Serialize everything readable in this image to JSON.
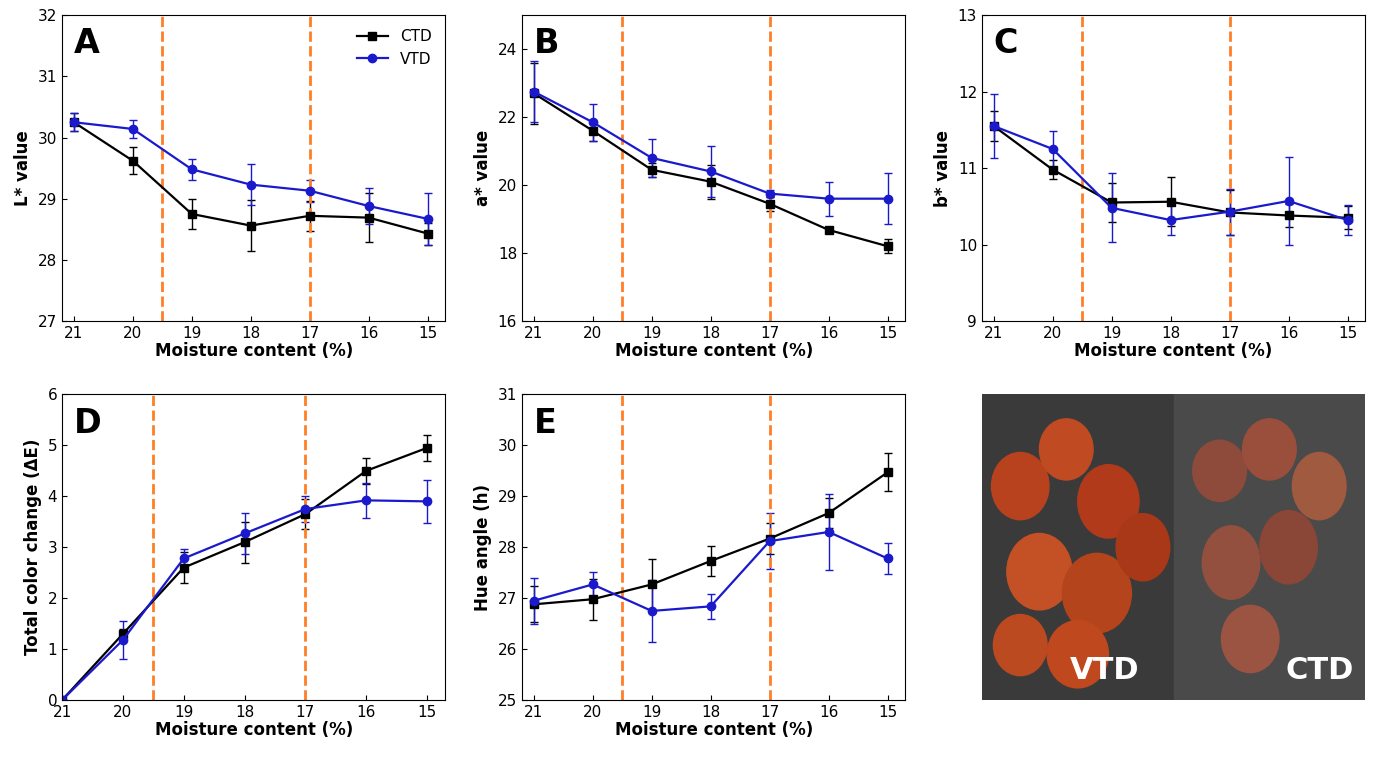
{
  "chart_data": [
    {
      "type": "line",
      "panel": "A",
      "xlabel": "Moisture content (%)",
      "ylabel": "L* value",
      "x": [
        21,
        20,
        19,
        18,
        17,
        16,
        15
      ],
      "xlim": [
        21.2,
        14.7
      ],
      "xticks": [
        21,
        20,
        19,
        18,
        17,
        16,
        15
      ],
      "ylim": [
        27,
        32
      ],
      "yticks": [
        27,
        28,
        29,
        30,
        31,
        32
      ],
      "vlines": [
        19.5,
        17
      ],
      "legend": "upper right",
      "series": [
        {
          "name": "CTD",
          "color": "#000000",
          "marker": "square",
          "values": [
            30.25,
            29.62,
            28.75,
            28.56,
            28.72,
            28.69,
            28.43
          ],
          "errors": [
            0.15,
            0.22,
            0.25,
            0.42,
            0.25,
            0.4,
            0.18
          ]
        },
        {
          "name": "VTD",
          "color": "#1a1acc",
          "marker": "circle",
          "values": [
            30.25,
            30.14,
            29.48,
            29.23,
            29.13,
            28.88,
            28.67
          ],
          "errors": [
            0.15,
            0.15,
            0.17,
            0.33,
            0.18,
            0.3,
            0.42
          ]
        }
      ]
    },
    {
      "type": "line",
      "panel": "B",
      "xlabel": "Moisture content (%)",
      "ylabel": "a* value",
      "x": [
        21,
        20,
        19,
        18,
        17,
        16,
        15
      ],
      "xlim": [
        21.2,
        14.7
      ],
      "xticks": [
        21,
        20,
        19,
        18,
        17,
        16,
        15
      ],
      "ylim": [
        16,
        25
      ],
      "yticks": [
        16,
        18,
        20,
        22,
        24
      ],
      "vlines": [
        19.5,
        17
      ],
      "series": [
        {
          "name": "CTD",
          "color": "#000000",
          "marker": "square",
          "values": [
            22.7,
            21.6,
            20.45,
            20.1,
            19.45,
            18.68,
            18.2
          ],
          "errors": [
            0.9,
            0.3,
            0.2,
            0.5,
            0.2,
            0.1,
            0.2
          ]
        },
        {
          "name": "VTD",
          "color": "#1a1acc",
          "marker": "circle",
          "values": [
            22.75,
            21.85,
            20.8,
            20.4,
            19.75,
            19.6,
            19.6
          ],
          "errors": [
            0.9,
            0.55,
            0.55,
            0.75,
            0.1,
            0.5,
            0.75
          ]
        }
      ]
    },
    {
      "type": "line",
      "panel": "C",
      "xlabel": "Moisture content (%)",
      "ylabel": "b* value",
      "x": [
        21,
        20,
        19,
        18,
        17,
        16,
        15
      ],
      "xlim": [
        21.2,
        14.7
      ],
      "xticks": [
        21,
        20,
        19,
        18,
        17,
        16,
        15
      ],
      "ylim": [
        9,
        13
      ],
      "yticks": [
        9,
        10,
        11,
        12,
        13
      ],
      "vlines": [
        19.5,
        17
      ],
      "series": [
        {
          "name": "CTD",
          "color": "#000000",
          "marker": "square",
          "values": [
            11.55,
            10.98,
            10.55,
            10.56,
            10.42,
            10.38,
            10.35
          ],
          "errors": [
            0.2,
            0.12,
            0.25,
            0.32,
            0.3,
            0.15,
            0.15
          ]
        },
        {
          "name": "VTD",
          "color": "#1a1acc",
          "marker": "circle",
          "values": [
            11.55,
            11.25,
            10.48,
            10.32,
            10.43,
            10.57,
            10.32
          ],
          "errors": [
            0.42,
            0.23,
            0.45,
            0.2,
            0.3,
            0.58,
            0.2
          ]
        }
      ]
    },
    {
      "type": "line",
      "panel": "D",
      "xlabel": "Moisture content (%)",
      "ylabel": "Total color change (ΔE)",
      "x": [
        21,
        20,
        19,
        18,
        17,
        16,
        15
      ],
      "xlim": [
        21,
        14.7
      ],
      "xticks": [
        21,
        20,
        19,
        18,
        17,
        16,
        15
      ],
      "ylim": [
        0,
        6
      ],
      "yticks": [
        0,
        1,
        2,
        3,
        4,
        5,
        6
      ],
      "vlines": [
        19.5,
        17
      ],
      "series": [
        {
          "name": "CTD",
          "color": "#000000",
          "marker": "square",
          "values": [
            0,
            1.3,
            2.6,
            3.1,
            3.65,
            4.5,
            4.95
          ],
          "errors": [
            0,
            0.1,
            0.3,
            0.4,
            0.3,
            0.25,
            0.25
          ]
        },
        {
          "name": "VTD",
          "color": "#1a1acc",
          "marker": "circle",
          "values": [
            0,
            1.18,
            2.78,
            3.27,
            3.75,
            3.92,
            3.9
          ],
          "errors": [
            0,
            0.38,
            0.18,
            0.4,
            0.25,
            0.35,
            0.42
          ]
        }
      ]
    },
    {
      "type": "line",
      "panel": "E",
      "xlabel": "Moisture content (%)",
      "ylabel": "Hue angle (h)",
      "x": [
        21,
        20,
        19,
        18,
        17,
        16,
        15
      ],
      "xlim": [
        21.2,
        14.7
      ],
      "xticks": [
        21,
        20,
        19,
        18,
        17,
        16,
        15
      ],
      "ylim": [
        25,
        31
      ],
      "yticks": [
        25,
        26,
        27,
        28,
        29,
        30,
        31
      ],
      "vlines": [
        19.5,
        17
      ],
      "series": [
        {
          "name": "CTD",
          "color": "#000000",
          "marker": "square",
          "values": [
            26.88,
            26.98,
            27.27,
            27.73,
            28.17,
            28.67,
            29.47
          ],
          "errors": [
            0.35,
            0.4,
            0.5,
            0.3,
            0.3,
            0.3,
            0.37
          ]
        },
        {
          "name": "VTD",
          "color": "#1a1acc",
          "marker": "circle",
          "values": [
            26.95,
            27.27,
            26.75,
            26.84,
            28.12,
            28.3,
            27.78
          ],
          "errors": [
            0.45,
            0.25,
            0.6,
            0.25,
            0.55,
            0.75,
            0.3
          ]
        }
      ]
    },
    {
      "type": "image",
      "labels": [
        "VTD",
        "CTD"
      ]
    }
  ]
}
